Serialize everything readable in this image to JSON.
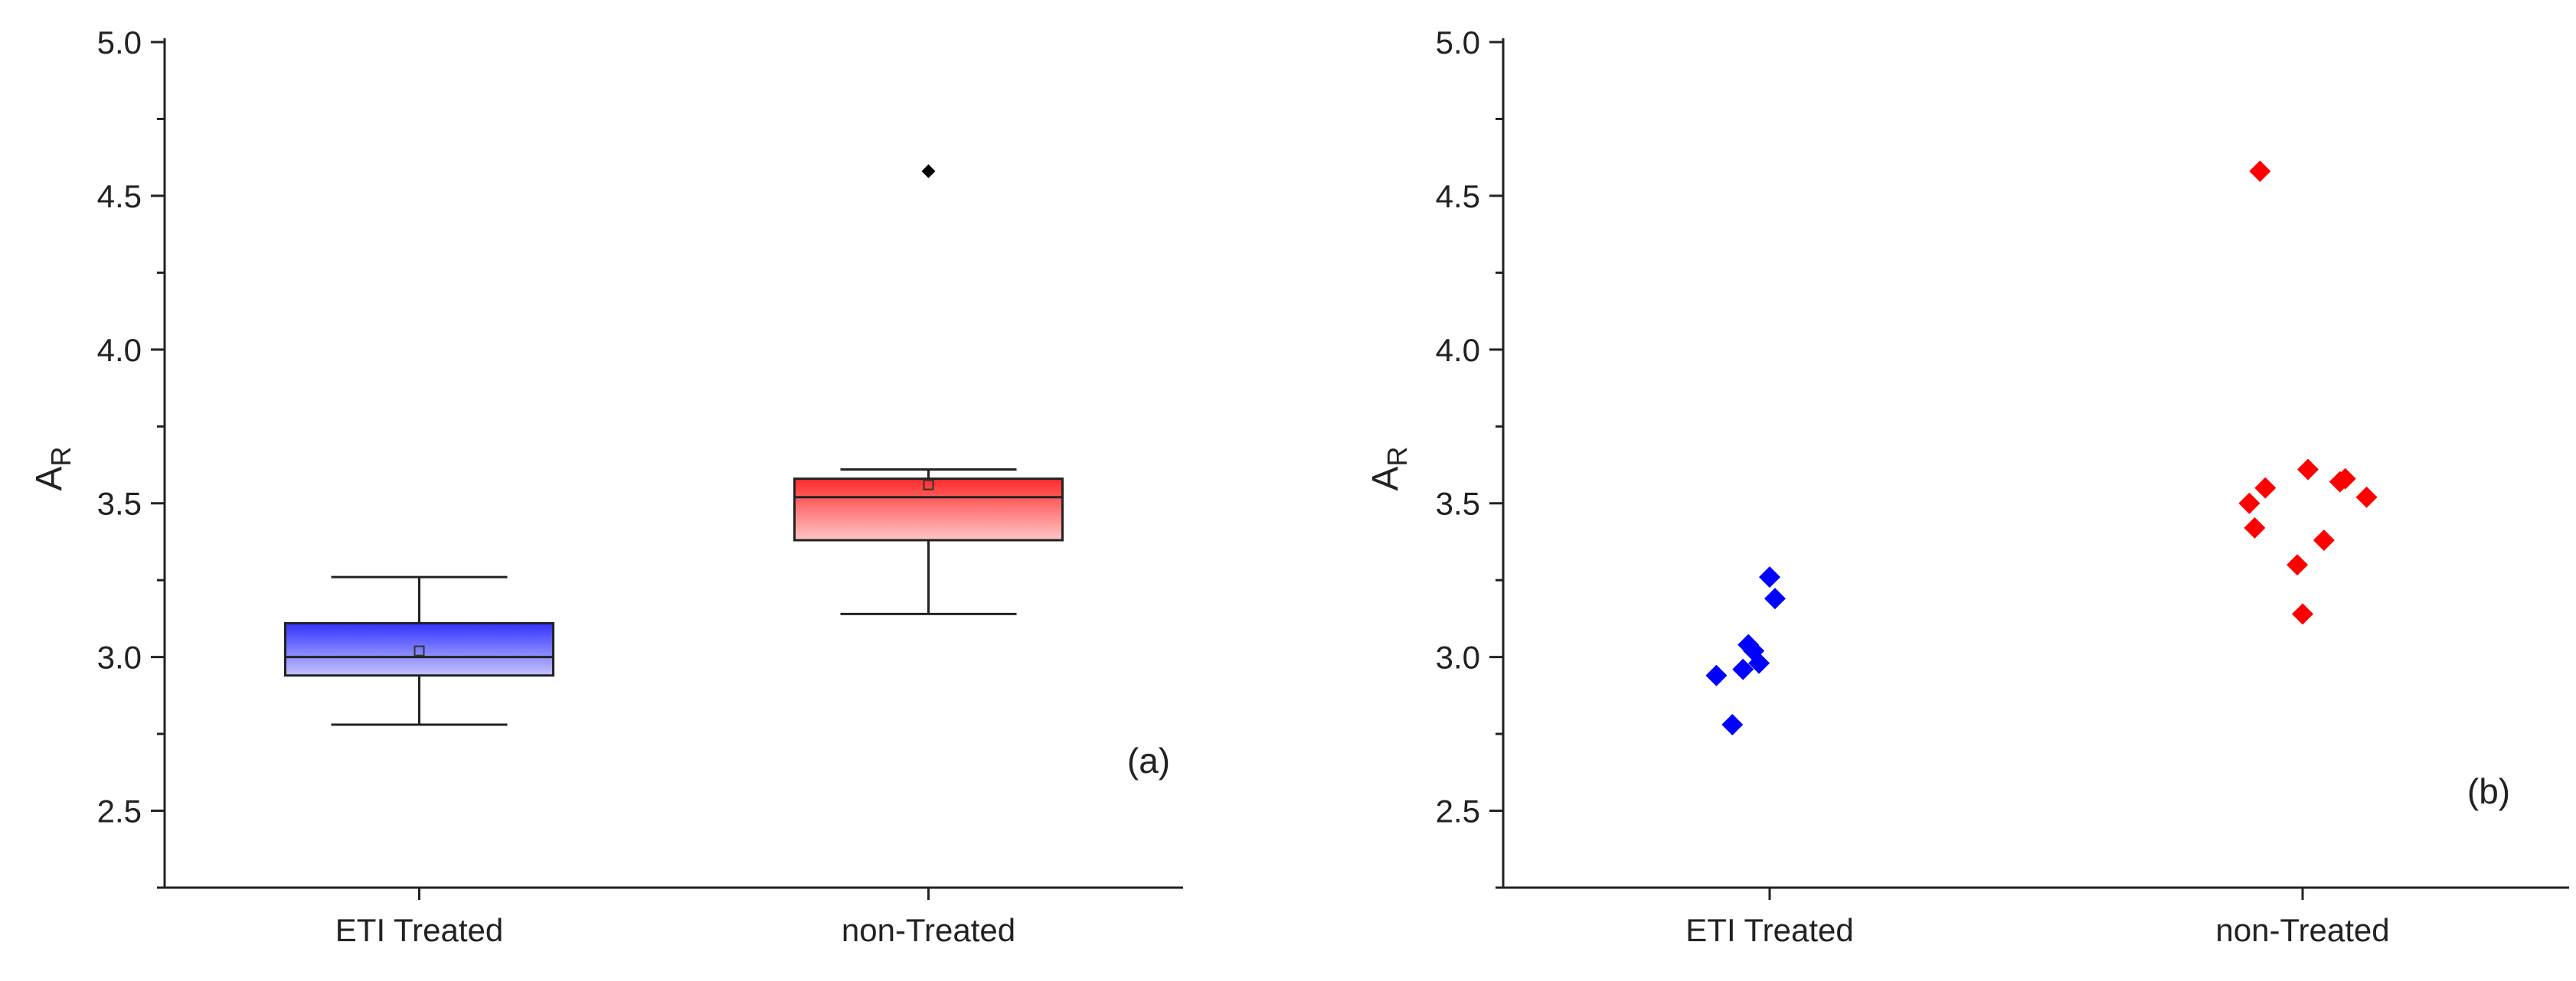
{
  "chart_data": [
    {
      "type": "box",
      "panel_label": "(a)",
      "ylabel_main": "A",
      "ylabel_sub": "R",
      "xlabel": "",
      "ylim": [
        2.25,
        5.0
      ],
      "yticks": [
        2.5,
        3.0,
        3.5,
        4.0,
        4.5,
        5.0
      ],
      "ytick_labels": [
        "2.5",
        "3.0",
        "3.5",
        "4.0",
        "4.5",
        "5.0"
      ],
      "categories": [
        "ETI Treated",
        "non-Treated"
      ],
      "boxes": [
        {
          "name": "ETI Treated",
          "whisker_low": 2.78,
          "q1": 2.94,
          "median": 3.0,
          "q3": 3.11,
          "whisker_high": 3.26,
          "mean": 3.02,
          "outliers": [],
          "fill_top": "#3333ff",
          "fill_bottom": "#c4c4ff"
        },
        {
          "name": "non-Treated",
          "whisker_low": 3.14,
          "q1": 3.38,
          "median": 3.52,
          "q3": 3.58,
          "whisker_high": 3.61,
          "mean": 3.56,
          "outliers": [
            4.58
          ],
          "fill_top": "#ff2a2a",
          "fill_bottom": "#ffc6c6"
        }
      ]
    },
    {
      "type": "scatter",
      "panel_label": "(b)",
      "ylabel_main": "A",
      "ylabel_sub": "R",
      "xlabel": "",
      "ylim": [
        2.25,
        5.0
      ],
      "yticks": [
        2.5,
        3.0,
        3.5,
        4.0,
        4.5,
        5.0
      ],
      "ytick_labels": [
        "2.5",
        "3.0",
        "3.5",
        "4.0",
        "4.5",
        "5.0"
      ],
      "categories": [
        "ETI Treated",
        "non-Treated"
      ],
      "series": [
        {
          "name": "ETI Treated",
          "color": "#0000ff",
          "points": [
            {
              "x": 1.0,
              "y": 3.26
            },
            {
              "x": 1.01,
              "y": 3.19
            },
            {
              "x": 0.96,
              "y": 3.04
            },
            {
              "x": 0.97,
              "y": 3.02
            },
            {
              "x": 0.98,
              "y": 2.98
            },
            {
              "x": 0.95,
              "y": 2.96
            },
            {
              "x": 0.9,
              "y": 2.94
            },
            {
              "x": 0.93,
              "y": 2.78
            }
          ]
        },
        {
          "name": "non-Treated",
          "color": "#ff0000",
          "points": [
            {
              "x": 1.92,
              "y": 4.58
            },
            {
              "x": 2.01,
              "y": 3.61
            },
            {
              "x": 2.08,
              "y": 3.58
            },
            {
              "x": 2.07,
              "y": 3.57
            },
            {
              "x": 1.93,
              "y": 3.55
            },
            {
              "x": 2.12,
              "y": 3.52
            },
            {
              "x": 1.9,
              "y": 3.5
            },
            {
              "x": 1.91,
              "y": 3.42
            },
            {
              "x": 2.04,
              "y": 3.38
            },
            {
              "x": 1.99,
              "y": 3.3
            },
            {
              "x": 2.0,
              "y": 3.14
            }
          ]
        }
      ]
    }
  ]
}
